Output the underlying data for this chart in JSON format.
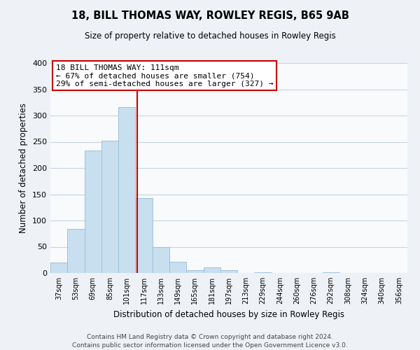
{
  "title": "18, BILL THOMAS WAY, ROWLEY REGIS, B65 9AB",
  "subtitle": "Size of property relative to detached houses in Rowley Regis",
  "xlabel": "Distribution of detached houses by size in Rowley Regis",
  "ylabel": "Number of detached properties",
  "bar_color": "#c8dff0",
  "bar_edge_color": "#a0c0dc",
  "bin_labels": [
    "37sqm",
    "53sqm",
    "69sqm",
    "85sqm",
    "101sqm",
    "117sqm",
    "133sqm",
    "149sqm",
    "165sqm",
    "181sqm",
    "197sqm",
    "213sqm",
    "229sqm",
    "244sqm",
    "260sqm",
    "276sqm",
    "292sqm",
    "308sqm",
    "324sqm",
    "340sqm",
    "356sqm"
  ],
  "bar_heights": [
    20,
    84,
    234,
    252,
    316,
    143,
    50,
    21,
    5,
    11,
    5,
    0,
    2,
    0,
    0,
    0,
    1,
    0,
    0,
    0,
    0
  ],
  "vline_x": 4.62,
  "annotation_line1": "18 BILL THOMAS WAY: 111sqm",
  "annotation_line2": "← 67% of detached houses are smaller (754)",
  "annotation_line3": "29% of semi-detached houses are larger (327) →",
  "annotation_box_color": "#ffffff",
  "annotation_border_color": "#cc0000",
  "vline_color": "#cc0000",
  "ylim": [
    0,
    400
  ],
  "yticks": [
    0,
    50,
    100,
    150,
    200,
    250,
    300,
    350,
    400
  ],
  "footer1": "Contains HM Land Registry data © Crown copyright and database right 2024.",
  "footer2": "Contains public sector information licensed under the Open Government Licence v3.0.",
  "background_color": "#eef2f7",
  "plot_background_color": "#f8fafc",
  "grid_color": "#c8d4e0"
}
